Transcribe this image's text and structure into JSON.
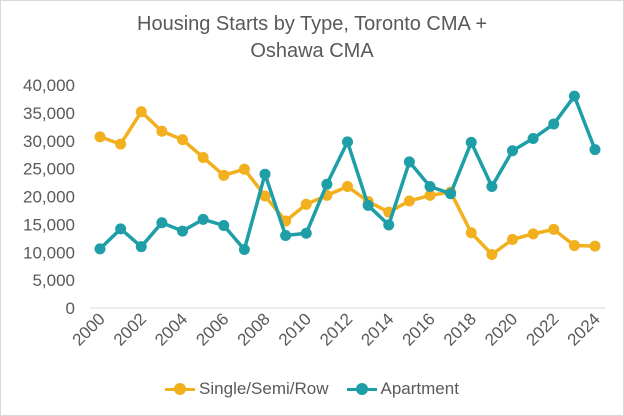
{
  "chart_data": {
    "type": "line",
    "title_lines": [
      "Housing Starts by Type, Toronto CMA +",
      "Oshawa CMA"
    ],
    "x": [
      2000,
      2001,
      2002,
      2003,
      2004,
      2005,
      2006,
      2007,
      2008,
      2009,
      2010,
      2011,
      2012,
      2013,
      2014,
      2015,
      2016,
      2017,
      2018,
      2019,
      2020,
      2021,
      2022,
      2023,
      2024
    ],
    "x_tick_labels": [
      "2000",
      "2002",
      "2004",
      "2006",
      "2008",
      "2010",
      "2012",
      "2014",
      "2016",
      "2018",
      "2020",
      "2022",
      "2024"
    ],
    "y_tick_labels": [
      "0",
      "5,000",
      "10,000",
      "15,000",
      "20,000",
      "25,000",
      "30,000",
      "35,000",
      "40,000"
    ],
    "ylim": [
      0,
      40000
    ],
    "y_step": 5000,
    "grid": false,
    "legend_position": "bottom",
    "series": [
      {
        "name": "Single/Semi/Row",
        "color": "#f2b01e",
        "values": [
          30700,
          29400,
          35200,
          31700,
          30200,
          27000,
          23800,
          24900,
          20100,
          15600,
          18600,
          20200,
          21800,
          19100,
          17200,
          19200,
          20200,
          20800,
          13500,
          9600,
          12300,
          13300,
          14100,
          11200,
          11100
        ]
      },
      {
        "name": "Apartment",
        "color": "#1e9ea6",
        "values": [
          10600,
          14200,
          11000,
          15300,
          13800,
          15900,
          14800,
          10500,
          24000,
          13000,
          13400,
          22200,
          29800,
          18400,
          14900,
          26200,
          21800,
          20500,
          29700,
          21800,
          28200,
          30400,
          33000,
          38000,
          28400
        ]
      }
    ]
  }
}
